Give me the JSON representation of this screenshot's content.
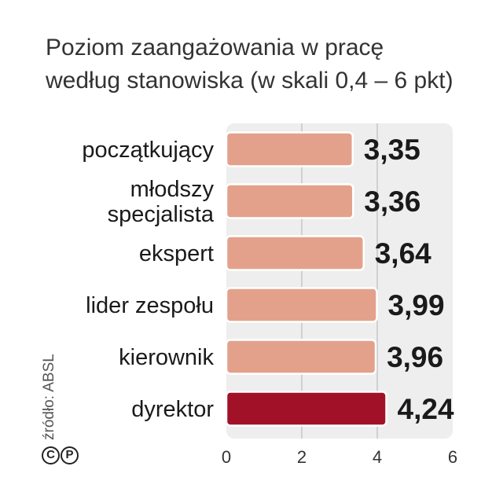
{
  "title_lines": [
    "Poziom zaangażowania w pracę",
    "według stanowiska (w skali 0,4 – 6 pkt)"
  ],
  "source": "źródło: ABSL",
  "copyright_marks": [
    "C",
    "P"
  ],
  "colors": {
    "bar": "#e3a18c",
    "highlight": "#a11229",
    "panel": "#eeeeee"
  },
  "chart_data": {
    "type": "bar",
    "orientation": "horizontal",
    "categories": [
      [
        "początkujący"
      ],
      [
        "młodszy",
        "specjalista"
      ],
      [
        "ekspert"
      ],
      [
        "lider zespołu"
      ],
      [
        "kierownik"
      ],
      [
        "dyrektor"
      ]
    ],
    "values": [
      3.35,
      3.36,
      3.64,
      3.99,
      3.96,
      4.24
    ],
    "value_labels": [
      "3,35",
      "3,36",
      "3,64",
      "3,99",
      "3,96",
      "4,24"
    ],
    "highlight_index": 5,
    "xlim": [
      0,
      6
    ],
    "xticks": [
      0,
      2,
      4,
      6
    ],
    "xtick_labels": [
      "0",
      "2",
      "4",
      "6"
    ],
    "grid": true
  }
}
